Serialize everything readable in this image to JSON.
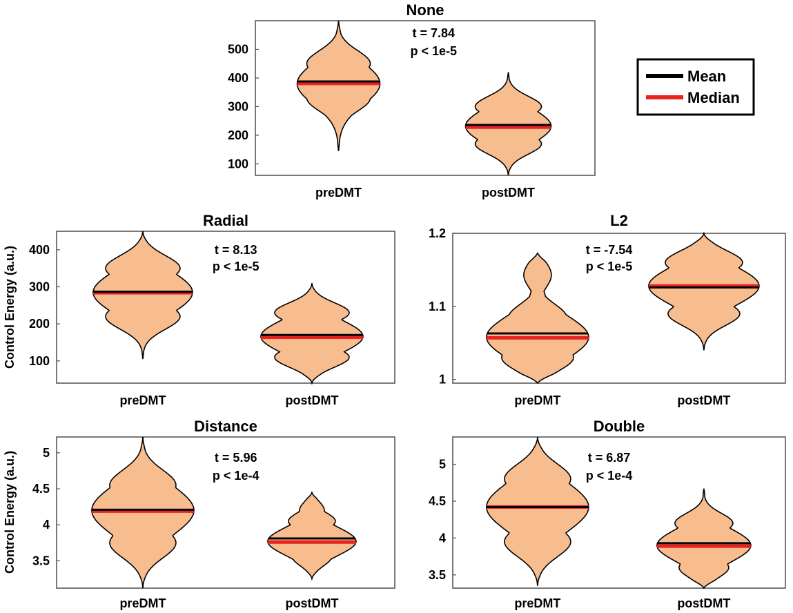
{
  "colors": {
    "violin_fill": "#f8bd8f",
    "mean": "#000000",
    "median": "#e8221f",
    "axes": "#4d4d4d"
  },
  "legend": {
    "placement": "right of top panel",
    "items": [
      {
        "label": "Mean",
        "color": "#000000"
      },
      {
        "label": "Median",
        "color": "#e8221f"
      }
    ]
  },
  "chart_data": [
    {
      "type": "violin",
      "title": "None",
      "ylabel": "",
      "categories": [
        "preDMT",
        "postDMT"
      ],
      "ylim": [
        60,
        600
      ],
      "yticks": [
        100,
        200,
        300,
        400,
        500
      ],
      "ytick_labels": [
        "100",
        "200",
        "300",
        "400",
        "500"
      ],
      "stats": {
        "t": "t = 7.84",
        "p": "p < 1e-5"
      },
      "groups": [
        {
          "name": "preDMT",
          "mean": 388,
          "median": 381,
          "min": 145,
          "max": 600,
          "peak": 380,
          "peak_hw": 60,
          "shoulders": [
            {
              "at": 450,
              "hw": 46
            },
            {
              "at": 330,
              "hw": 46
            }
          ]
        },
        {
          "name": "postDMT",
          "mean": 236,
          "median": 228,
          "min": 60,
          "max": 420,
          "peak": 232,
          "peak_hw": 62,
          "shoulders": [
            {
              "at": 300,
              "hw": 48
            },
            {
              "at": 170,
              "hw": 48
            }
          ]
        }
      ]
    },
    {
      "type": "violin",
      "title": "Radial",
      "ylabel": "Control Energy (a.u.)",
      "categories": [
        "preDMT",
        "postDMT"
      ],
      "ylim": [
        40,
        450
      ],
      "yticks": [
        100,
        200,
        300,
        400
      ],
      "ytick_labels": [
        "100",
        "200",
        "300",
        "400"
      ],
      "stats": {
        "t": "t = 8.13",
        "p": "p < 1e-5"
      },
      "groups": [
        {
          "name": "preDMT",
          "mean": 287,
          "median": 284,
          "min": 105,
          "max": 450,
          "peak": 285,
          "peak_hw": 72,
          "shoulders": [
            {
              "at": 350,
              "hw": 54
            },
            {
              "at": 220,
              "hw": 54
            }
          ]
        },
        {
          "name": "postDMT",
          "mean": 170,
          "median": 164,
          "min": 40,
          "max": 310,
          "peak": 166,
          "peak_hw": 74,
          "shoulders": [
            {
              "at": 230,
              "hw": 54
            },
            {
              "at": 110,
              "hw": 54
            }
          ]
        }
      ]
    },
    {
      "type": "violin",
      "title": "L2",
      "ylabel": "",
      "categories": [
        "preDMT",
        "postDMT"
      ],
      "ylim": [
        0.995,
        1.2
      ],
      "yticks": [
        1.0,
        1.1,
        1.2
      ],
      "ytick_labels": [
        "1",
        "1.1",
        "1.2"
      ],
      "stats": {
        "t": "t = -7.54",
        "p": "p < 1e-5"
      },
      "groups": [
        {
          "name": "preDMT",
          "mean": 1.063,
          "median": 1.057,
          "min": 0.995,
          "max": 1.173,
          "peak": 1.058,
          "peak_hw": 74,
          "shoulders": [
            {
              "at": 1.03,
              "hw": 52
            },
            {
              "at": 1.085,
              "hw": 42
            },
            {
              "at": 1.108,
              "hw": 12
            },
            {
              "at": 1.143,
              "hw": 20
            }
          ]
        },
        {
          "name": "postDMT",
          "mean": 1.126,
          "median": 1.128,
          "min": 1.04,
          "max": 1.2,
          "peak": 1.128,
          "peak_hw": 80,
          "shoulders": [
            {
              "at": 1.16,
              "hw": 56
            },
            {
              "at": 1.09,
              "hw": 52
            }
          ]
        }
      ]
    },
    {
      "type": "violin",
      "title": "Distance",
      "ylabel": "Control Energy (a.u.)",
      "categories": [
        "preDMT",
        "postDMT"
      ],
      "ylim": [
        3.12,
        5.22
      ],
      "yticks": [
        3.5,
        4,
        4.5,
        5
      ],
      "ytick_labels": [
        "3.5",
        "4",
        "4.5",
        "5"
      ],
      "stats": {
        "t": "t = 5.96",
        "p": "p < 1e-4"
      },
      "groups": [
        {
          "name": "preDMT",
          "mean": 4.21,
          "median": 4.19,
          "min": 3.12,
          "max": 5.22,
          "peak": 4.2,
          "peak_hw": 74,
          "shoulders": [
            {
              "at": 4.55,
              "hw": 48
            },
            {
              "at": 3.75,
              "hw": 48
            }
          ]
        },
        {
          "name": "postDMT",
          "mean": 3.81,
          "median": 3.76,
          "min": 3.25,
          "max": 4.45,
          "peak": 3.77,
          "peak_hw": 64,
          "shoulders": [
            {
              "at": 4.05,
              "hw": 34
            },
            {
              "at": 4.2,
              "hw": 18
            },
            {
              "at": 3.55,
              "hw": 28
            }
          ]
        }
      ]
    },
    {
      "type": "violin",
      "title": "Double",
      "ylabel": "",
      "categories": [
        "preDMT",
        "postDMT"
      ],
      "ylim": [
        3.32,
        5.37
      ],
      "yticks": [
        3.5,
        4,
        4.5,
        5
      ],
      "ytick_labels": [
        "3.5",
        "4",
        "4.5",
        "5"
      ],
      "stats": {
        "t": "t = 6.87",
        "p": "p < 1e-4"
      },
      "groups": [
        {
          "name": "preDMT",
          "mean": 4.42,
          "median": 4.42,
          "min": 3.35,
          "max": 5.37,
          "peak": 4.42,
          "peak_hw": 74,
          "shoulders": [
            {
              "at": 4.8,
              "hw": 48
            },
            {
              "at": 3.95,
              "hw": 48
            }
          ]
        },
        {
          "name": "postDMT",
          "mean": 3.93,
          "median": 3.89,
          "min": 3.32,
          "max": 4.67,
          "peak": 3.9,
          "peak_hw": 68,
          "shoulders": [
            {
              "at": 4.2,
              "hw": 42
            },
            {
              "at": 3.6,
              "hw": 36
            }
          ]
        }
      ]
    }
  ]
}
